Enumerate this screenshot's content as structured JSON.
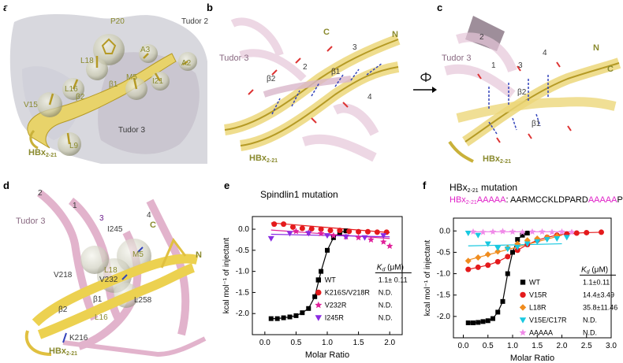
{
  "panels": {
    "a": {
      "letter": "a",
      "labels": {
        "tudor2": "Tudor 2",
        "tudor3": "Tudor 3",
        "p20": "P20",
        "a3": "A3",
        "a2": "A2",
        "l18": "L18",
        "m5": "M5",
        "i21": "I21",
        "b1": "β1",
        "b2": "β2",
        "l16": "L16",
        "v15": "V15",
        "l9": "L9",
        "hbx": "HBx",
        "hbx_sub": "2-21"
      }
    },
    "b": {
      "letter": "b",
      "labels": {
        "tudor3": "Tudor 3",
        "c": "C",
        "n": "N",
        "s2": "2",
        "s3": "3",
        "s4": "4",
        "b1": "β1",
        "b2": "β2",
        "hbx": "HBx",
        "hbx_sub": "2-21"
      }
    },
    "c": {
      "letter": "c",
      "labels": {
        "tudor3": "Tudor 3",
        "n": "N",
        "c": "C",
        "s1": "1",
        "s2": "2",
        "s3": "3",
        "s4": "4",
        "b1": "β1",
        "b2": "β2",
        "hbx": "HBx",
        "hbx_sub": "2-21"
      }
    },
    "d": {
      "letter": "d",
      "labels": {
        "tudor3": "Tudor 3",
        "s1": "1",
        "s2": "2",
        "s3": "3",
        "s4": "4",
        "c": "C",
        "n": "N",
        "i245": "I245",
        "m5": "M5",
        "v218": "V218",
        "v232": "V232",
        "l18": "L18",
        "l258": "L258",
        "b1": "β1",
        "b2": "β2",
        "l16": "L16",
        "k216": "K216",
        "hbx": "HBx",
        "hbx_sub": "2-21"
      }
    },
    "e": {
      "letter": "e",
      "title": "Spindlin1 mutation"
    },
    "f": {
      "letter": "f",
      "title_main": "HBx",
      "title_sub": "2-21",
      "title_suffix": " mutation",
      "seq_label_main": "HBx",
      "seq_label_sub": "2-21",
      "seq_label_suffix": "AAAAA",
      "seq_colon": ": ",
      "seq_part1": "AARMCCKLDPARD",
      "seq_part2": "AAAAA",
      "seq_part3": "PI"
    }
  },
  "chart_data": [
    {
      "type": "scatter",
      "panel": "e",
      "xlabel": "Molar Ratio",
      "ylabel": "kcal mol⁻¹ of injectant",
      "xlim": [
        -0.2,
        2.2
      ],
      "ylim": [
        -2.5,
        0.3
      ],
      "xticks": [
        "0.0",
        "0.5",
        "1.0",
        "1.5",
        "2.0"
      ],
      "yticks": [
        "0.0",
        "-0.5",
        "-1.0",
        "-1.5",
        "-2.0"
      ],
      "legend_header": "K_d (μM)",
      "legend_header_main": "K",
      "legend_header_sub": "d",
      "legend_header_unit": " (μM)",
      "legend_placement": "lower-right",
      "series": [
        {
          "name": "WT",
          "kd": "1.1± 0.11",
          "marker": "square",
          "color": "#000000",
          "x": [
            0.1,
            0.2,
            0.3,
            0.4,
            0.5,
            0.6,
            0.7,
            0.8,
            0.9,
            1.0,
            1.1,
            1.2,
            1.3
          ],
          "y": [
            -2.12,
            -2.12,
            -2.1,
            -2.08,
            -2.05,
            -1.98,
            -1.88,
            -1.6,
            -1.0,
            -0.5,
            -0.2,
            -0.08,
            -0.04
          ]
        },
        {
          "name": "K216S/V218R",
          "kd": "N.D.",
          "marker": "circle",
          "color": "#e41a1c",
          "x": [
            0.15,
            0.3,
            0.45,
            0.6,
            0.75,
            0.9,
            1.05,
            1.2,
            1.35,
            1.5,
            1.65,
            1.8,
            1.95
          ],
          "y": [
            0.12,
            0.12,
            0.05,
            0.02,
            0.01,
            0.0,
            -0.03,
            -0.03,
            -0.05,
            -0.06,
            -0.06,
            -0.07,
            -0.07
          ]
        },
        {
          "name": "V232R",
          "kd": "N.D.",
          "marker": "star",
          "color": "#e0209a",
          "x": [
            0.5,
            0.7,
            0.9,
            1.1,
            1.3,
            1.5,
            1.7,
            1.9,
            2.0
          ],
          "y": [
            -0.05,
            -0.08,
            -0.1,
            -0.15,
            -0.18,
            -0.2,
            -0.25,
            -0.3,
            -0.4
          ]
        },
        {
          "name": "I245R",
          "kd": "N.D.",
          "marker": "triangle-down",
          "color": "#8a2be2",
          "x": [
            0.1,
            0.4,
            0.7,
            1.0,
            1.3,
            1.6,
            1.9
          ],
          "y": [
            -0.22,
            -0.1,
            -0.1,
            -0.15,
            -0.18,
            -0.2,
            -0.15
          ]
        }
      ],
      "fits": [
        {
          "color": "#000000",
          "kind": "sigmoid"
        },
        {
          "color": "#e41a1c",
          "kind": "line",
          "from": [
            0.1,
            0.15
          ],
          "to": [
            2.0,
            -0.08
          ]
        },
        {
          "color": "#e0209a",
          "kind": "line",
          "from": [
            0.1,
            -0.02
          ],
          "to": [
            2.0,
            -0.22
          ]
        },
        {
          "color": "#8a2be2",
          "kind": "line",
          "from": [
            0.1,
            -0.12
          ],
          "to": [
            2.0,
            -0.18
          ]
        }
      ]
    },
    {
      "type": "scatter",
      "panel": "f",
      "xlabel": "Molar Ratio",
      "ylabel": "kcal mol⁻¹ of injectant",
      "xlim": [
        -0.2,
        3.0
      ],
      "ylim": [
        -2.5,
        0.3
      ],
      "xticks": [
        "0.0",
        "0.5",
        "1.0",
        "1.5",
        "2.0",
        "2.5",
        "3.0"
      ],
      "yticks": [
        "0.0",
        "-0.5",
        "-1.0",
        "-1.5",
        "-2.0"
      ],
      "legend_header": "K_d (μM)",
      "legend_header_main": "K",
      "legend_header_sub": "d",
      "legend_header_unit": " (μM)",
      "legend_placement": "lower-right",
      "series": [
        {
          "name": "WT",
          "kd": "1.1±0.11",
          "marker": "square",
          "color": "#000000",
          "x": [
            0.1,
            0.2,
            0.3,
            0.4,
            0.5,
            0.6,
            0.7,
            0.8,
            0.9,
            1.0,
            1.1,
            1.2,
            1.3
          ],
          "y": [
            -2.15,
            -2.15,
            -2.14,
            -2.12,
            -2.1,
            -2.05,
            -1.9,
            -1.65,
            -1.0,
            -0.5,
            -0.2,
            -0.1,
            -0.05
          ]
        },
        {
          "name": "V15R",
          "kd": "14.4±3.49",
          "marker": "circle",
          "color": "#e41a1c",
          "x": [
            0.1,
            0.3,
            0.5,
            0.7,
            0.9,
            1.1,
            1.3,
            1.5,
            1.7,
            1.9,
            2.1,
            2.3,
            2.5,
            2.8
          ],
          "y": [
            -0.9,
            -0.85,
            -0.8,
            -0.72,
            -0.6,
            -0.45,
            -0.32,
            -0.22,
            -0.15,
            -0.1,
            -0.07,
            -0.05,
            -0.04,
            -0.03
          ]
        },
        {
          "name": "L18R",
          "kd": "35.8±11.46",
          "marker": "diamond",
          "color": "#f08c1e",
          "x": [
            0.1,
            0.3,
            0.5,
            0.7,
            0.9,
            1.1,
            1.3,
            1.5,
            1.7,
            1.9
          ],
          "y": [
            -0.7,
            -0.62,
            -0.55,
            -0.48,
            -0.4,
            -0.3,
            -0.22,
            -0.18,
            -0.15,
            -0.12
          ]
        },
        {
          "name": "V15E/C17R",
          "kd": "N.D.",
          "marker": "triangle-down",
          "color": "#19c8e0",
          "x": [
            0.1,
            0.3,
            0.5,
            0.7,
            0.9,
            1.1,
            1.3,
            1.5,
            1.7,
            1.9,
            2.1
          ],
          "y": [
            -0.05,
            -0.1,
            -0.3,
            -0.4,
            -0.42,
            -0.38,
            -0.3,
            -0.25,
            -0.2,
            -0.18,
            -0.15
          ]
        },
        {
          "name": "AAAAA",
          "kd": "N.D.",
          "marker": "star",
          "color": "#f08ae8",
          "x": [
            0.2,
            0.4,
            0.6,
            0.8,
            1.0,
            1.2,
            1.4,
            1.6,
            1.8,
            2.0,
            2.2
          ],
          "y": [
            -0.02,
            -0.03,
            -0.02,
            -0.01,
            -0.02,
            -0.03,
            -0.02,
            -0.02,
            -0.03,
            -0.02,
            -0.03
          ]
        }
      ],
      "fits": [
        {
          "color": "#000000",
          "kind": "sigmoid"
        },
        {
          "color": "#e41a1c",
          "kind": "curve"
        },
        {
          "color": "#f08c1e",
          "kind": "line",
          "from": [
            0.1,
            -0.68
          ],
          "to": [
            2.0,
            -0.1
          ]
        },
        {
          "color": "#19c8e0",
          "kind": "line",
          "from": [
            0.1,
            -0.35
          ],
          "to": [
            2.0,
            -0.3
          ]
        },
        {
          "color": "#f08ae8",
          "kind": "line",
          "from": [
            0.1,
            -0.02
          ],
          "to": [
            2.2,
            -0.02
          ]
        }
      ]
    }
  ]
}
